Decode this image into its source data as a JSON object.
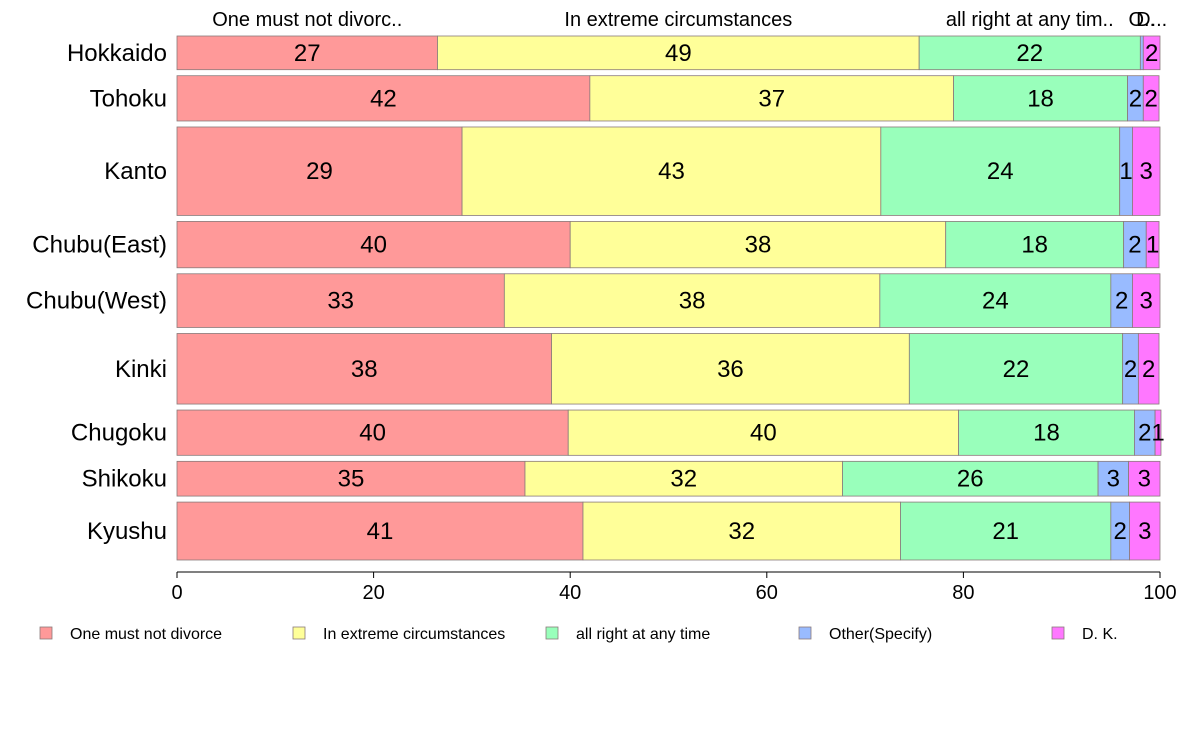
{
  "chart_data": {
    "type": "bar",
    "orientation": "horizontal",
    "stacked": true,
    "top_labels": [
      "One must not divorc..",
      "In extreme circumstances",
      "all right at any tim..",
      "O..",
      "D..."
    ],
    "categories": [
      "Hokkaido",
      "Tohoku",
      "Kanto",
      "Chubu(East)",
      "Chubu(West)",
      "Kinki",
      "Chugoku",
      "Shikoku",
      "Kyushu"
    ],
    "bar_widths_relative": [
      32,
      43,
      84,
      44,
      51,
      67,
      43,
      33,
      55
    ],
    "series": [
      {
        "name": "One must not divorce",
        "color": "#ff9999",
        "values": [
          26.5,
          42,
          29,
          40,
          33.3,
          38.1,
          39.8,
          35.4,
          41.3
        ],
        "labels": [
          "27",
          "42",
          "29",
          "40",
          "33",
          "38",
          "40",
          "35",
          "41"
        ]
      },
      {
        "name": "In extreme circumstances",
        "color": "#ffff99",
        "values": [
          49,
          37,
          42.6,
          38.2,
          38.2,
          36.4,
          39.7,
          32.3,
          32.3
        ],
        "labels": [
          "49",
          "37",
          "43",
          "38",
          "38",
          "36",
          "40",
          "32",
          "32"
        ]
      },
      {
        "name": "all right at any time",
        "color": "#99ffbb",
        "values": [
          22.5,
          17.7,
          24.3,
          18.1,
          23.5,
          21.7,
          17.9,
          26,
          21.4
        ],
        "labels": [
          "22",
          "18",
          "24",
          "18",
          "24",
          "22",
          "18",
          "26",
          "21"
        ]
      },
      {
        "name": "Other(Specify)",
        "color": "#99bbff",
        "values": [
          0.3,
          1.6,
          1.3,
          2.3,
          2.2,
          1.6,
          2.1,
          3.1,
          1.9
        ],
        "labels": [
          "",
          "2",
          "1",
          "2",
          "2",
          "2",
          "2",
          "3",
          "2"
        ]
      },
      {
        "name": "D. K.",
        "color": "#ff77ff",
        "values": [
          1.7,
          1.6,
          2.8,
          1.3,
          2.8,
          2.1,
          0.6,
          3.2,
          3.1
        ],
        "labels": [
          "2",
          "2",
          "3",
          "1",
          "3",
          "2",
          "1",
          "3",
          "3"
        ]
      }
    ],
    "xlim": [
      0,
      100
    ],
    "xticks": [
      0,
      20,
      40,
      60,
      80,
      100
    ],
    "xlabel": "",
    "ylabel": "",
    "legend_position": "bottom",
    "grid": false
  }
}
